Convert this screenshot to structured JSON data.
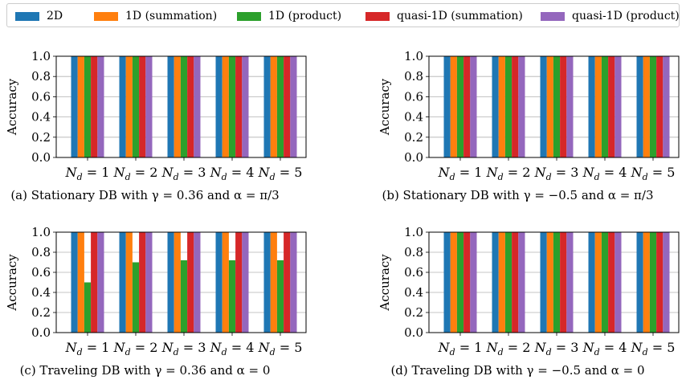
{
  "legend": {
    "entries": [
      {
        "label": "2D",
        "color": "#1f77b4"
      },
      {
        "label": "1D (summation)",
        "color": "#ff7f0e"
      },
      {
        "label": "1D (product)",
        "color": "#2ca02c"
      },
      {
        "label": "quasi-1D (summation)",
        "color": "#d62728"
      },
      {
        "label": "quasi-1D (product)",
        "color": "#9467bd"
      }
    ]
  },
  "chart_data": [
    {
      "type": "bar",
      "caption": "(a) Stationary DB with γ = 0.36 and α = π/3",
      "ylabel": "Accuracy",
      "ylim": [
        0,
        1
      ],
      "yticks": [
        "0.0",
        "0.2",
        "0.4",
        "0.6",
        "0.8",
        "1.0"
      ],
      "grid": true,
      "categories": [
        "N_d = 1",
        "N_d = 2",
        "N_d = 3",
        "N_d = 4",
        "N_d = 5"
      ],
      "series": [
        {
          "name": "2D",
          "values": [
            1.0,
            1.0,
            1.0,
            1.0,
            1.0
          ]
        },
        {
          "name": "1D (summation)",
          "values": [
            1.0,
            1.0,
            1.0,
            1.0,
            1.0
          ]
        },
        {
          "name": "1D (product)",
          "values": [
            1.0,
            1.0,
            1.0,
            1.0,
            1.0
          ]
        },
        {
          "name": "quasi-1D (summation)",
          "values": [
            1.0,
            1.0,
            1.0,
            1.0,
            1.0
          ]
        },
        {
          "name": "quasi-1D (product)",
          "values": [
            1.0,
            1.0,
            1.0,
            1.0,
            1.0
          ]
        }
      ]
    },
    {
      "type": "bar",
      "caption": "(b) Stationary DB with γ = −0.5 and α = π/3",
      "ylabel": "Accuracy",
      "ylim": [
        0,
        1
      ],
      "yticks": [
        "0.0",
        "0.2",
        "0.4",
        "0.6",
        "0.8",
        "1.0"
      ],
      "grid": true,
      "categories": [
        "N_d = 1",
        "N_d = 2",
        "N_d = 3",
        "N_d = 4",
        "N_d = 5"
      ],
      "series": [
        {
          "name": "2D",
          "values": [
            1.0,
            1.0,
            1.0,
            1.0,
            1.0
          ]
        },
        {
          "name": "1D (summation)",
          "values": [
            1.0,
            1.0,
            1.0,
            1.0,
            1.0
          ]
        },
        {
          "name": "1D (product)",
          "values": [
            1.0,
            1.0,
            1.0,
            1.0,
            1.0
          ]
        },
        {
          "name": "quasi-1D (summation)",
          "values": [
            1.0,
            1.0,
            1.0,
            1.0,
            1.0
          ]
        },
        {
          "name": "quasi-1D (product)",
          "values": [
            1.0,
            1.0,
            1.0,
            1.0,
            1.0
          ]
        }
      ]
    },
    {
      "type": "bar",
      "caption": "(c) Traveling DB with γ = 0.36 and α = 0",
      "ylabel": "Accuracy",
      "ylim": [
        0,
        1
      ],
      "yticks": [
        "0.0",
        "0.2",
        "0.4",
        "0.6",
        "0.8",
        "1.0"
      ],
      "grid": true,
      "categories": [
        "N_d = 1",
        "N_d = 2",
        "N_d = 3",
        "N_d = 4",
        "N_d = 5"
      ],
      "series": [
        {
          "name": "2D",
          "values": [
            1.0,
            1.0,
            1.0,
            1.0,
            1.0
          ]
        },
        {
          "name": "1D (summation)",
          "values": [
            1.0,
            1.0,
            1.0,
            1.0,
            1.0
          ]
        },
        {
          "name": "1D (product)",
          "values": [
            0.5,
            0.7,
            0.72,
            0.72,
            0.72
          ]
        },
        {
          "name": "quasi-1D (summation)",
          "values": [
            1.0,
            1.0,
            1.0,
            1.0,
            1.0
          ]
        },
        {
          "name": "quasi-1D (product)",
          "values": [
            1.0,
            1.0,
            1.0,
            1.0,
            1.0
          ]
        }
      ]
    },
    {
      "type": "bar",
      "caption": "(d) Traveling DB with γ = −0.5 and α = 0",
      "ylabel": "Accuracy",
      "ylim": [
        0,
        1
      ],
      "yticks": [
        "0.0",
        "0.2",
        "0.4",
        "0.6",
        "0.8",
        "1.0"
      ],
      "grid": true,
      "categories": [
        "N_d = 1",
        "N_d = 2",
        "N_d = 3",
        "N_d = 4",
        "N_d = 5"
      ],
      "series": [
        {
          "name": "2D",
          "values": [
            1.0,
            1.0,
            1.0,
            1.0,
            1.0
          ]
        },
        {
          "name": "1D (summation)",
          "values": [
            1.0,
            1.0,
            1.0,
            1.0,
            1.0
          ]
        },
        {
          "name": "1D (product)",
          "values": [
            1.0,
            1.0,
            1.0,
            1.0,
            1.0
          ]
        },
        {
          "name": "quasi-1D (summation)",
          "values": [
            1.0,
            1.0,
            1.0,
            1.0,
            1.0
          ]
        },
        {
          "name": "quasi-1D (product)",
          "values": [
            1.0,
            1.0,
            1.0,
            1.0,
            1.0
          ]
        }
      ]
    }
  ]
}
